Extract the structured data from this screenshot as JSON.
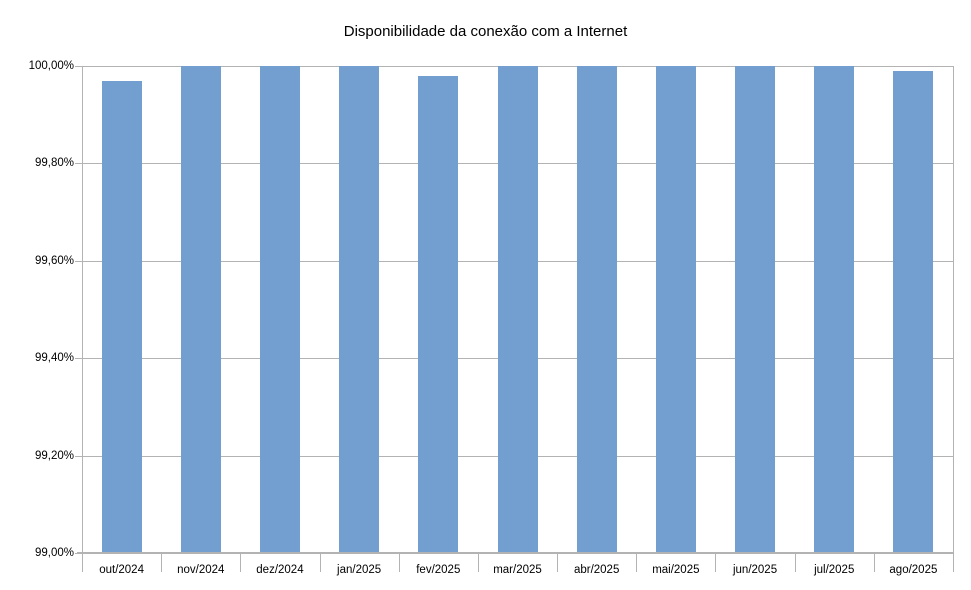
{
  "chart_data": {
    "type": "bar",
    "title": "Disponibilidade da conexão com a Internet",
    "categories": [
      "out/2024",
      "nov/2024",
      "dez/2024",
      "jan/2025",
      "fev/2025",
      "mar/2025",
      "abr/2025",
      "mai/2025",
      "jun/2025",
      "jul/2025",
      "ago/2025"
    ],
    "values": [
      99.97,
      100.0,
      100.0,
      100.0,
      99.98,
      100.0,
      100.0,
      100.0,
      100.0,
      100.0,
      99.99
    ],
    "xlabel": "",
    "ylabel": "",
    "ylim": [
      99.0,
      100.0
    ],
    "yticks": [
      99.0,
      99.2,
      99.4,
      99.6,
      99.8,
      100.0
    ],
    "ytick_labels": [
      "99,00%",
      "99,20%",
      "99,40%",
      "99,60%",
      "99,80%",
      "100,00%"
    ],
    "grid": true,
    "legend": "none",
    "bar_color": "#729FCF",
    "grid_color": "#b3b3b3",
    "axis_color": "#b3b3b3",
    "text_color": "#000000"
  }
}
